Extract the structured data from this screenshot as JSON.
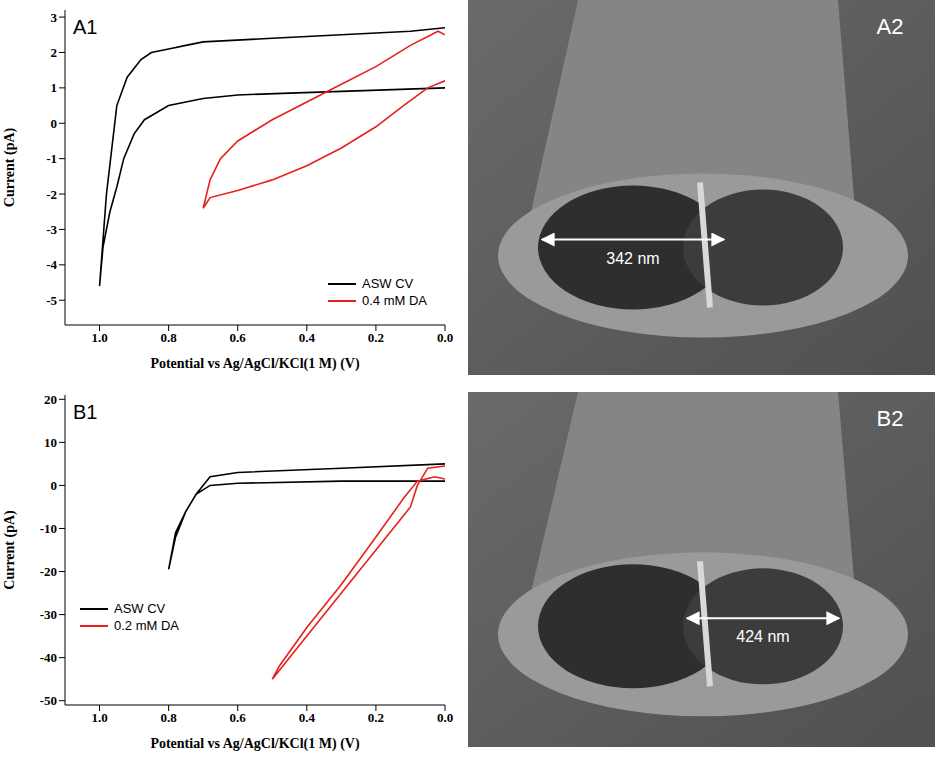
{
  "chart_data": [
    {
      "type": "line",
      "panel": "A1",
      "x_label": "Potential vs Ag/AgCl/KCl(1 M) (V)",
      "y_label": "Current (pA)",
      "xlim": [
        1.1,
        0
      ],
      "xticks": [
        {
          "value": 1,
          "label": "1.0"
        },
        {
          "value": 0.8,
          "label": "0.8"
        },
        {
          "value": 0.6,
          "label": "0.6"
        },
        {
          "value": 0.4,
          "label": "0.4"
        },
        {
          "value": 0.2,
          "label": "0.2"
        },
        {
          "value": 0,
          "label": "0.0"
        }
      ],
      "ylim": [
        -5.7,
        3.2
      ],
      "yticks": [
        -5,
        -4,
        -3,
        -2,
        -1,
        0,
        1,
        2,
        3
      ],
      "grid": false,
      "legend": "lower right",
      "series": [
        {
          "name": "ASW CV",
          "color": "#000000",
          "x": [
            0,
            0.1,
            0.3,
            0.5,
            0.7,
            0.75,
            0.8,
            0.85,
            0.88,
            0.92,
            0.95,
            0.98,
            1.0,
            0.99,
            0.97,
            0.95,
            0.93,
            0.9,
            0.87,
            0.8,
            0.7,
            0.6,
            0.45,
            0.3,
            0.15,
            0
          ],
          "values": [
            2.7,
            2.6,
            2.5,
            2.4,
            2.3,
            2.2,
            2.1,
            2.0,
            1.8,
            1.3,
            0.5,
            -2.0,
            -4.6,
            -3.5,
            -2.5,
            -1.8,
            -1.0,
            -0.3,
            0.1,
            0.5,
            0.7,
            0.8,
            0.85,
            0.9,
            0.95,
            1.0
          ]
        },
        {
          "name": "0.4 mM DA",
          "color": "#e8201c",
          "x": [
            0,
            0.02,
            0.1,
            0.2,
            0.3,
            0.4,
            0.5,
            0.6,
            0.65,
            0.68,
            0.7,
            0.68,
            0.6,
            0.5,
            0.4,
            0.3,
            0.2,
            0.12,
            0.05,
            0
          ],
          "values": [
            2.5,
            2.6,
            2.2,
            1.6,
            1.1,
            0.6,
            0.1,
            -0.5,
            -1.0,
            -1.6,
            -2.4,
            -2.1,
            -1.9,
            -1.6,
            -1.2,
            -0.7,
            -0.1,
            0.5,
            1.0,
            1.2
          ]
        }
      ]
    },
    {
      "type": "line",
      "panel": "B1",
      "x_label": "Potential vs Ag/AgCl/KCl(1 M) (V)",
      "y_label": "Current (pA)",
      "xlim": [
        1.1,
        0
      ],
      "xticks": [
        {
          "value": 1,
          "label": "1.0"
        },
        {
          "value": 0.8,
          "label": "0.8"
        },
        {
          "value": 0.6,
          "label": "0.6"
        },
        {
          "value": 0.4,
          "label": "0.4"
        },
        {
          "value": 0.2,
          "label": "0.2"
        },
        {
          "value": 0,
          "label": "0.0"
        }
      ],
      "ylim": [
        -51,
        21
      ],
      "yticks": [
        -50,
        -40,
        -30,
        -20,
        -10,
        0,
        10,
        20
      ],
      "grid": false,
      "legend": "lower left",
      "series": [
        {
          "name": "ASW CV",
          "color": "#000000",
          "x": [
            0,
            0.3,
            0.6,
            0.68,
            0.72,
            0.75,
            0.78,
            0.8,
            0.78,
            0.75,
            0.72,
            0.68,
            0.6,
            0.3,
            0
          ],
          "values": [
            5,
            4,
            3,
            2,
            -2,
            -6,
            -11,
            -19.5,
            -12,
            -6,
            -2,
            0,
            0.5,
            1,
            1
          ]
        },
        {
          "name": "0.2 mM DA",
          "color": "#e8201c",
          "x": [
            0,
            0.05,
            0.08,
            0.1,
            0.2,
            0.3,
            0.4,
            0.5,
            0.48,
            0.4,
            0.3,
            0.2,
            0.12,
            0.08,
            0.03,
            0
          ],
          "values": [
            4.5,
            4,
            0,
            -5,
            -15,
            -25,
            -35,
            -45,
            -42,
            -33,
            -23,
            -12,
            -3,
            1,
            2,
            1.5
          ]
        }
      ]
    }
  ],
  "images": [
    {
      "panel": "A2",
      "scale_bar": "342 nm"
    },
    {
      "panel": "B2",
      "scale_bar": "424 nm"
    }
  ]
}
